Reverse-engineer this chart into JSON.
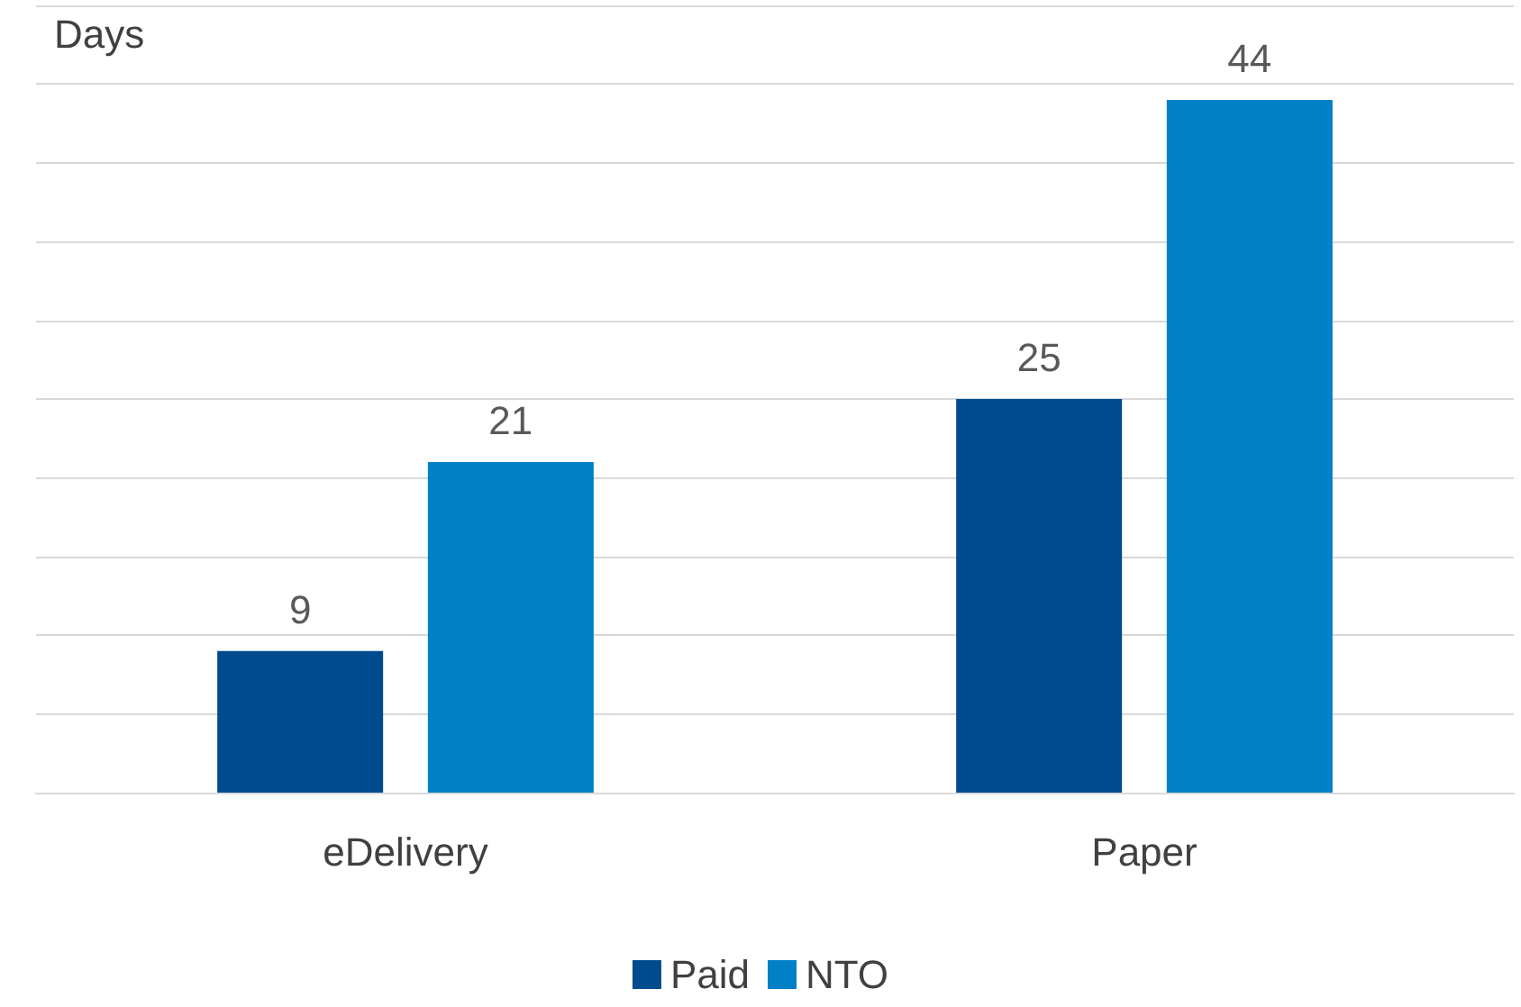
{
  "chart_data": {
    "type": "bar",
    "ylabel": "Days",
    "categories": [
      "eDelivery",
      "Paper"
    ],
    "series": [
      {
        "name": "Paid",
        "color": "#004b8d",
        "values": [
          9,
          25
        ]
      },
      {
        "name": "NTO",
        "color": "#0080c6",
        "values": [
          21,
          44
        ]
      }
    ],
    "ylim": [
      0,
      50
    ],
    "yticks": [
      {
        "value": 0,
        "label": null
      },
      {
        "value": 5,
        "label": null
      },
      {
        "value": 10,
        "label": null
      },
      {
        "value": 15,
        "label": null
      },
      {
        "value": 20,
        "label": null
      },
      {
        "value": 25,
        "label": null
      },
      {
        "value": 30,
        "label": null
      },
      {
        "value": 35,
        "label": null
      },
      {
        "value": 40,
        "label": null
      },
      {
        "value": 45,
        "label": null
      },
      {
        "value": 50,
        "label": null
      }
    ],
    "grid": "y",
    "legend": "bottom",
    "tick_labels": "x",
    "data_labels": true
  }
}
